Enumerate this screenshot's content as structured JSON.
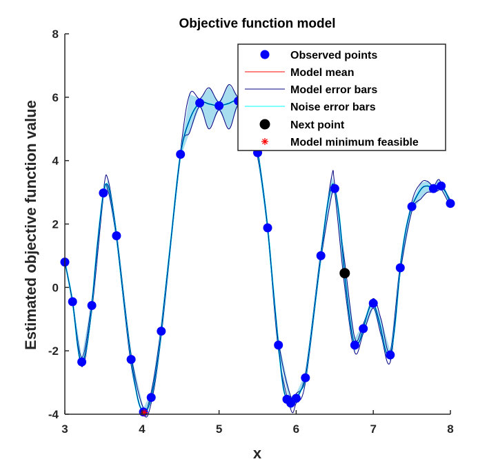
{
  "chart_data": {
    "type": "line",
    "title": "Objective function model",
    "xlabel": "x",
    "ylabel": "Estimated objective function value",
    "xlim": [
      3,
      8
    ],
    "ylim": [
      -4,
      8
    ],
    "xticks": [
      "3",
      "4",
      "5",
      "6",
      "7",
      "8"
    ],
    "yticks": [
      "-4",
      "-2",
      "0",
      "2",
      "4",
      "6",
      "8"
    ],
    "legend_position": "top-right",
    "colors": {
      "observed": "#0000ff",
      "model_mean": "#ff0000",
      "model_error_bars": "#000080",
      "noise_error_bars": "#00ffff",
      "next_point": "#000000",
      "model_minimum": "#ff0000",
      "fill": "#a8ddf0"
    },
    "legend": [
      {
        "key": "observed",
        "label": "Observed points",
        "marker": "dot"
      },
      {
        "key": "model_mean",
        "label": "Model mean",
        "marker": "line"
      },
      {
        "key": "model_error_bars",
        "label": "Model error bars",
        "marker": "line"
      },
      {
        "key": "noise_error_bars",
        "label": "Noise error bars",
        "marker": "line"
      },
      {
        "key": "next_point",
        "label": "Next point",
        "marker": "bigdot"
      },
      {
        "key": "model_minimum",
        "label": "Model minimum feasible",
        "marker": "asterisk"
      }
    ],
    "observed_points": [
      {
        "x": 3.0,
        "y": 0.8
      },
      {
        "x": 3.1,
        "y": -0.45
      },
      {
        "x": 3.22,
        "y": -2.35
      },
      {
        "x": 3.35,
        "y": -0.57
      },
      {
        "x": 3.5,
        "y": 2.98
      },
      {
        "x": 3.67,
        "y": 1.63
      },
      {
        "x": 3.86,
        "y": -2.27
      },
      {
        "x": 4.02,
        "y": -3.93
      },
      {
        "x": 4.12,
        "y": -3.47
      },
      {
        "x": 4.25,
        "y": -1.38
      },
      {
        "x": 4.5,
        "y": 4.2
      },
      {
        "x": 4.75,
        "y": 5.82
      },
      {
        "x": 5.0,
        "y": 5.73
      },
      {
        "x": 5.25,
        "y": 5.88
      },
      {
        "x": 5.5,
        "y": 4.25
      },
      {
        "x": 5.63,
        "y": 1.88
      },
      {
        "x": 5.77,
        "y": -1.82
      },
      {
        "x": 5.88,
        "y": -3.53
      },
      {
        "x": 5.93,
        "y": -3.65
      },
      {
        "x": 6.0,
        "y": -3.5
      },
      {
        "x": 6.12,
        "y": -2.85
      },
      {
        "x": 6.32,
        "y": 1.0
      },
      {
        "x": 6.5,
        "y": 3.12
      },
      {
        "x": 6.76,
        "y": -1.82
      },
      {
        "x": 6.87,
        "y": -1.3
      },
      {
        "x": 7.0,
        "y": -0.5
      },
      {
        "x": 7.22,
        "y": -2.13
      },
      {
        "x": 7.35,
        "y": 0.62
      },
      {
        "x": 7.5,
        "y": 2.55
      },
      {
        "x": 7.78,
        "y": 3.12
      },
      {
        "x": 7.88,
        "y": 3.2
      },
      {
        "x": 8.0,
        "y": 2.65
      }
    ],
    "model_mean": [
      {
        "x": 3.0,
        "y": 0.8
      },
      {
        "x": 3.1,
        "y": -0.45
      },
      {
        "x": 3.17,
        "y": -1.9
      },
      {
        "x": 3.22,
        "y": -2.35
      },
      {
        "x": 3.28,
        "y": -1.9
      },
      {
        "x": 3.35,
        "y": -0.57
      },
      {
        "x": 3.42,
        "y": 1.3
      },
      {
        "x": 3.5,
        "y": 2.98
      },
      {
        "x": 3.55,
        "y": 3.25
      },
      {
        "x": 3.6,
        "y": 2.8
      },
      {
        "x": 3.67,
        "y": 1.63
      },
      {
        "x": 3.76,
        "y": -0.3
      },
      {
        "x": 3.86,
        "y": -2.27
      },
      {
        "x": 3.95,
        "y": -3.55
      },
      {
        "x": 4.02,
        "y": -3.93
      },
      {
        "x": 4.07,
        "y": -3.85
      },
      {
        "x": 4.12,
        "y": -3.47
      },
      {
        "x": 4.19,
        "y": -2.55
      },
      {
        "x": 4.25,
        "y": -1.38
      },
      {
        "x": 4.38,
        "y": 1.6
      },
      {
        "x": 4.5,
        "y": 4.2
      },
      {
        "x": 4.62,
        "y": 5.3
      },
      {
        "x": 4.75,
        "y": 5.82
      },
      {
        "x": 4.88,
        "y": 5.78
      },
      {
        "x": 5.0,
        "y": 5.73
      },
      {
        "x": 5.12,
        "y": 5.8
      },
      {
        "x": 5.25,
        "y": 5.88
      },
      {
        "x": 5.4,
        "y": 5.4
      },
      {
        "x": 5.5,
        "y": 4.25
      },
      {
        "x": 5.57,
        "y": 3.1
      },
      {
        "x": 5.63,
        "y": 1.88
      },
      {
        "x": 5.7,
        "y": 0.0
      },
      {
        "x": 5.77,
        "y": -1.82
      },
      {
        "x": 5.83,
        "y": -3.1
      },
      {
        "x": 5.88,
        "y": -3.53
      },
      {
        "x": 5.93,
        "y": -3.65
      },
      {
        "x": 6.0,
        "y": -3.5
      },
      {
        "x": 6.06,
        "y": -3.25
      },
      {
        "x": 6.12,
        "y": -2.85
      },
      {
        "x": 6.22,
        "y": -1.0
      },
      {
        "x": 6.32,
        "y": 1.0
      },
      {
        "x": 6.4,
        "y": 2.5
      },
      {
        "x": 6.46,
        "y": 3.2
      },
      {
        "x": 6.5,
        "y": 3.12
      },
      {
        "x": 6.56,
        "y": 2.2
      },
      {
        "x": 6.63,
        "y": 0.4
      },
      {
        "x": 6.7,
        "y": -1.1
      },
      {
        "x": 6.76,
        "y": -1.82
      },
      {
        "x": 6.82,
        "y": -1.7
      },
      {
        "x": 6.87,
        "y": -1.3
      },
      {
        "x": 6.94,
        "y": -0.7
      },
      {
        "x": 7.0,
        "y": -0.5
      },
      {
        "x": 7.08,
        "y": -1.1
      },
      {
        "x": 7.16,
        "y": -2.0
      },
      {
        "x": 7.22,
        "y": -2.13
      },
      {
        "x": 7.28,
        "y": -1.2
      },
      {
        "x": 7.35,
        "y": 0.62
      },
      {
        "x": 7.42,
        "y": 1.8
      },
      {
        "x": 7.5,
        "y": 2.55
      },
      {
        "x": 7.62,
        "y": 3.1
      },
      {
        "x": 7.7,
        "y": 3.2
      },
      {
        "x": 7.78,
        "y": 3.12
      },
      {
        "x": 7.84,
        "y": 3.25
      },
      {
        "x": 7.88,
        "y": 3.2
      },
      {
        "x": 7.94,
        "y": 3.0
      },
      {
        "x": 8.0,
        "y": 2.65
      }
    ],
    "model_error_bars": {
      "upper": [
        {
          "x": 3.0,
          "y": 0.8
        },
        {
          "x": 3.1,
          "y": -0.4
        },
        {
          "x": 3.22,
          "y": -2.2
        },
        {
          "x": 3.35,
          "y": -0.4
        },
        {
          "x": 3.5,
          "y": 3.05
        },
        {
          "x": 3.56,
          "y": 3.4
        },
        {
          "x": 3.67,
          "y": 1.75
        },
        {
          "x": 3.86,
          "y": -2.1
        },
        {
          "x": 4.02,
          "y": -3.8
        },
        {
          "x": 4.12,
          "y": -3.3
        },
        {
          "x": 4.25,
          "y": -1.2
        },
        {
          "x": 4.5,
          "y": 4.3
        },
        {
          "x": 4.62,
          "y": 6.1
        },
        {
          "x": 4.75,
          "y": 5.95
        },
        {
          "x": 4.87,
          "y": 6.3
        },
        {
          "x": 5.0,
          "y": 5.85
        },
        {
          "x": 5.13,
          "y": 6.4
        },
        {
          "x": 5.25,
          "y": 6.0
        },
        {
          "x": 5.38,
          "y": 6.2
        },
        {
          "x": 5.5,
          "y": 4.4
        },
        {
          "x": 5.63,
          "y": 2.0
        },
        {
          "x": 5.77,
          "y": -1.65
        },
        {
          "x": 5.93,
          "y": -3.45
        },
        {
          "x": 6.0,
          "y": -3.35
        },
        {
          "x": 6.12,
          "y": -2.7
        },
        {
          "x": 6.32,
          "y": 1.15
        },
        {
          "x": 6.46,
          "y": 3.5
        },
        {
          "x": 6.5,
          "y": 3.25
        },
        {
          "x": 6.63,
          "y": 0.8
        },
        {
          "x": 6.76,
          "y": -1.6
        },
        {
          "x": 6.87,
          "y": -1.15
        },
        {
          "x": 7.0,
          "y": -0.35
        },
        {
          "x": 7.1,
          "y": -1.0
        },
        {
          "x": 7.22,
          "y": -2.0
        },
        {
          "x": 7.35,
          "y": 0.75
        },
        {
          "x": 7.5,
          "y": 2.7
        },
        {
          "x": 7.62,
          "y": 3.3
        },
        {
          "x": 7.7,
          "y": 3.35
        },
        {
          "x": 7.78,
          "y": 3.2
        },
        {
          "x": 7.84,
          "y": 3.4
        },
        {
          "x": 7.88,
          "y": 3.3
        },
        {
          "x": 8.0,
          "y": 2.75
        }
      ],
      "lower": [
        {
          "x": 3.0,
          "y": 0.8
        },
        {
          "x": 3.1,
          "y": -0.55
        },
        {
          "x": 3.22,
          "y": -2.5
        },
        {
          "x": 3.35,
          "y": -0.75
        },
        {
          "x": 3.5,
          "y": 2.85
        },
        {
          "x": 3.56,
          "y": 3.05
        },
        {
          "x": 3.67,
          "y": 1.5
        },
        {
          "x": 3.86,
          "y": -2.45
        },
        {
          "x": 4.02,
          "y": -4.0
        },
        {
          "x": 4.12,
          "y": -3.65
        },
        {
          "x": 4.25,
          "y": -1.55
        },
        {
          "x": 4.5,
          "y": 4.1
        },
        {
          "x": 4.62,
          "y": 4.9
        },
        {
          "x": 4.75,
          "y": 5.7
        },
        {
          "x": 4.87,
          "y": 5.0
        },
        {
          "x": 5.0,
          "y": 5.6
        },
        {
          "x": 5.13,
          "y": 5.0
        },
        {
          "x": 5.25,
          "y": 5.75
        },
        {
          "x": 5.38,
          "y": 5.0
        },
        {
          "x": 5.5,
          "y": 4.1
        },
        {
          "x": 5.63,
          "y": 1.75
        },
        {
          "x": 5.77,
          "y": -2.0
        },
        {
          "x": 5.93,
          "y": -3.85
        },
        {
          "x": 6.0,
          "y": -3.65
        },
        {
          "x": 6.12,
          "y": -3.0
        },
        {
          "x": 6.32,
          "y": 0.85
        },
        {
          "x": 6.46,
          "y": 2.9
        },
        {
          "x": 6.5,
          "y": 3.0
        },
        {
          "x": 6.63,
          "y": 0.0
        },
        {
          "x": 6.76,
          "y": -2.05
        },
        {
          "x": 6.87,
          "y": -1.45
        },
        {
          "x": 7.0,
          "y": -0.65
        },
        {
          "x": 7.1,
          "y": -1.5
        },
        {
          "x": 7.22,
          "y": -2.35
        },
        {
          "x": 7.35,
          "y": 0.45
        },
        {
          "x": 7.5,
          "y": 2.4
        },
        {
          "x": 7.62,
          "y": 2.8
        },
        {
          "x": 7.7,
          "y": 3.0
        },
        {
          "x": 7.78,
          "y": 3.0
        },
        {
          "x": 7.84,
          "y": 3.05
        },
        {
          "x": 7.88,
          "y": 3.1
        },
        {
          "x": 8.0,
          "y": 2.55
        }
      ]
    },
    "next_point": {
      "x": 6.63,
      "y": 0.45
    },
    "model_minimum_feasible": {
      "x": 4.03,
      "y": -3.95
    }
  }
}
